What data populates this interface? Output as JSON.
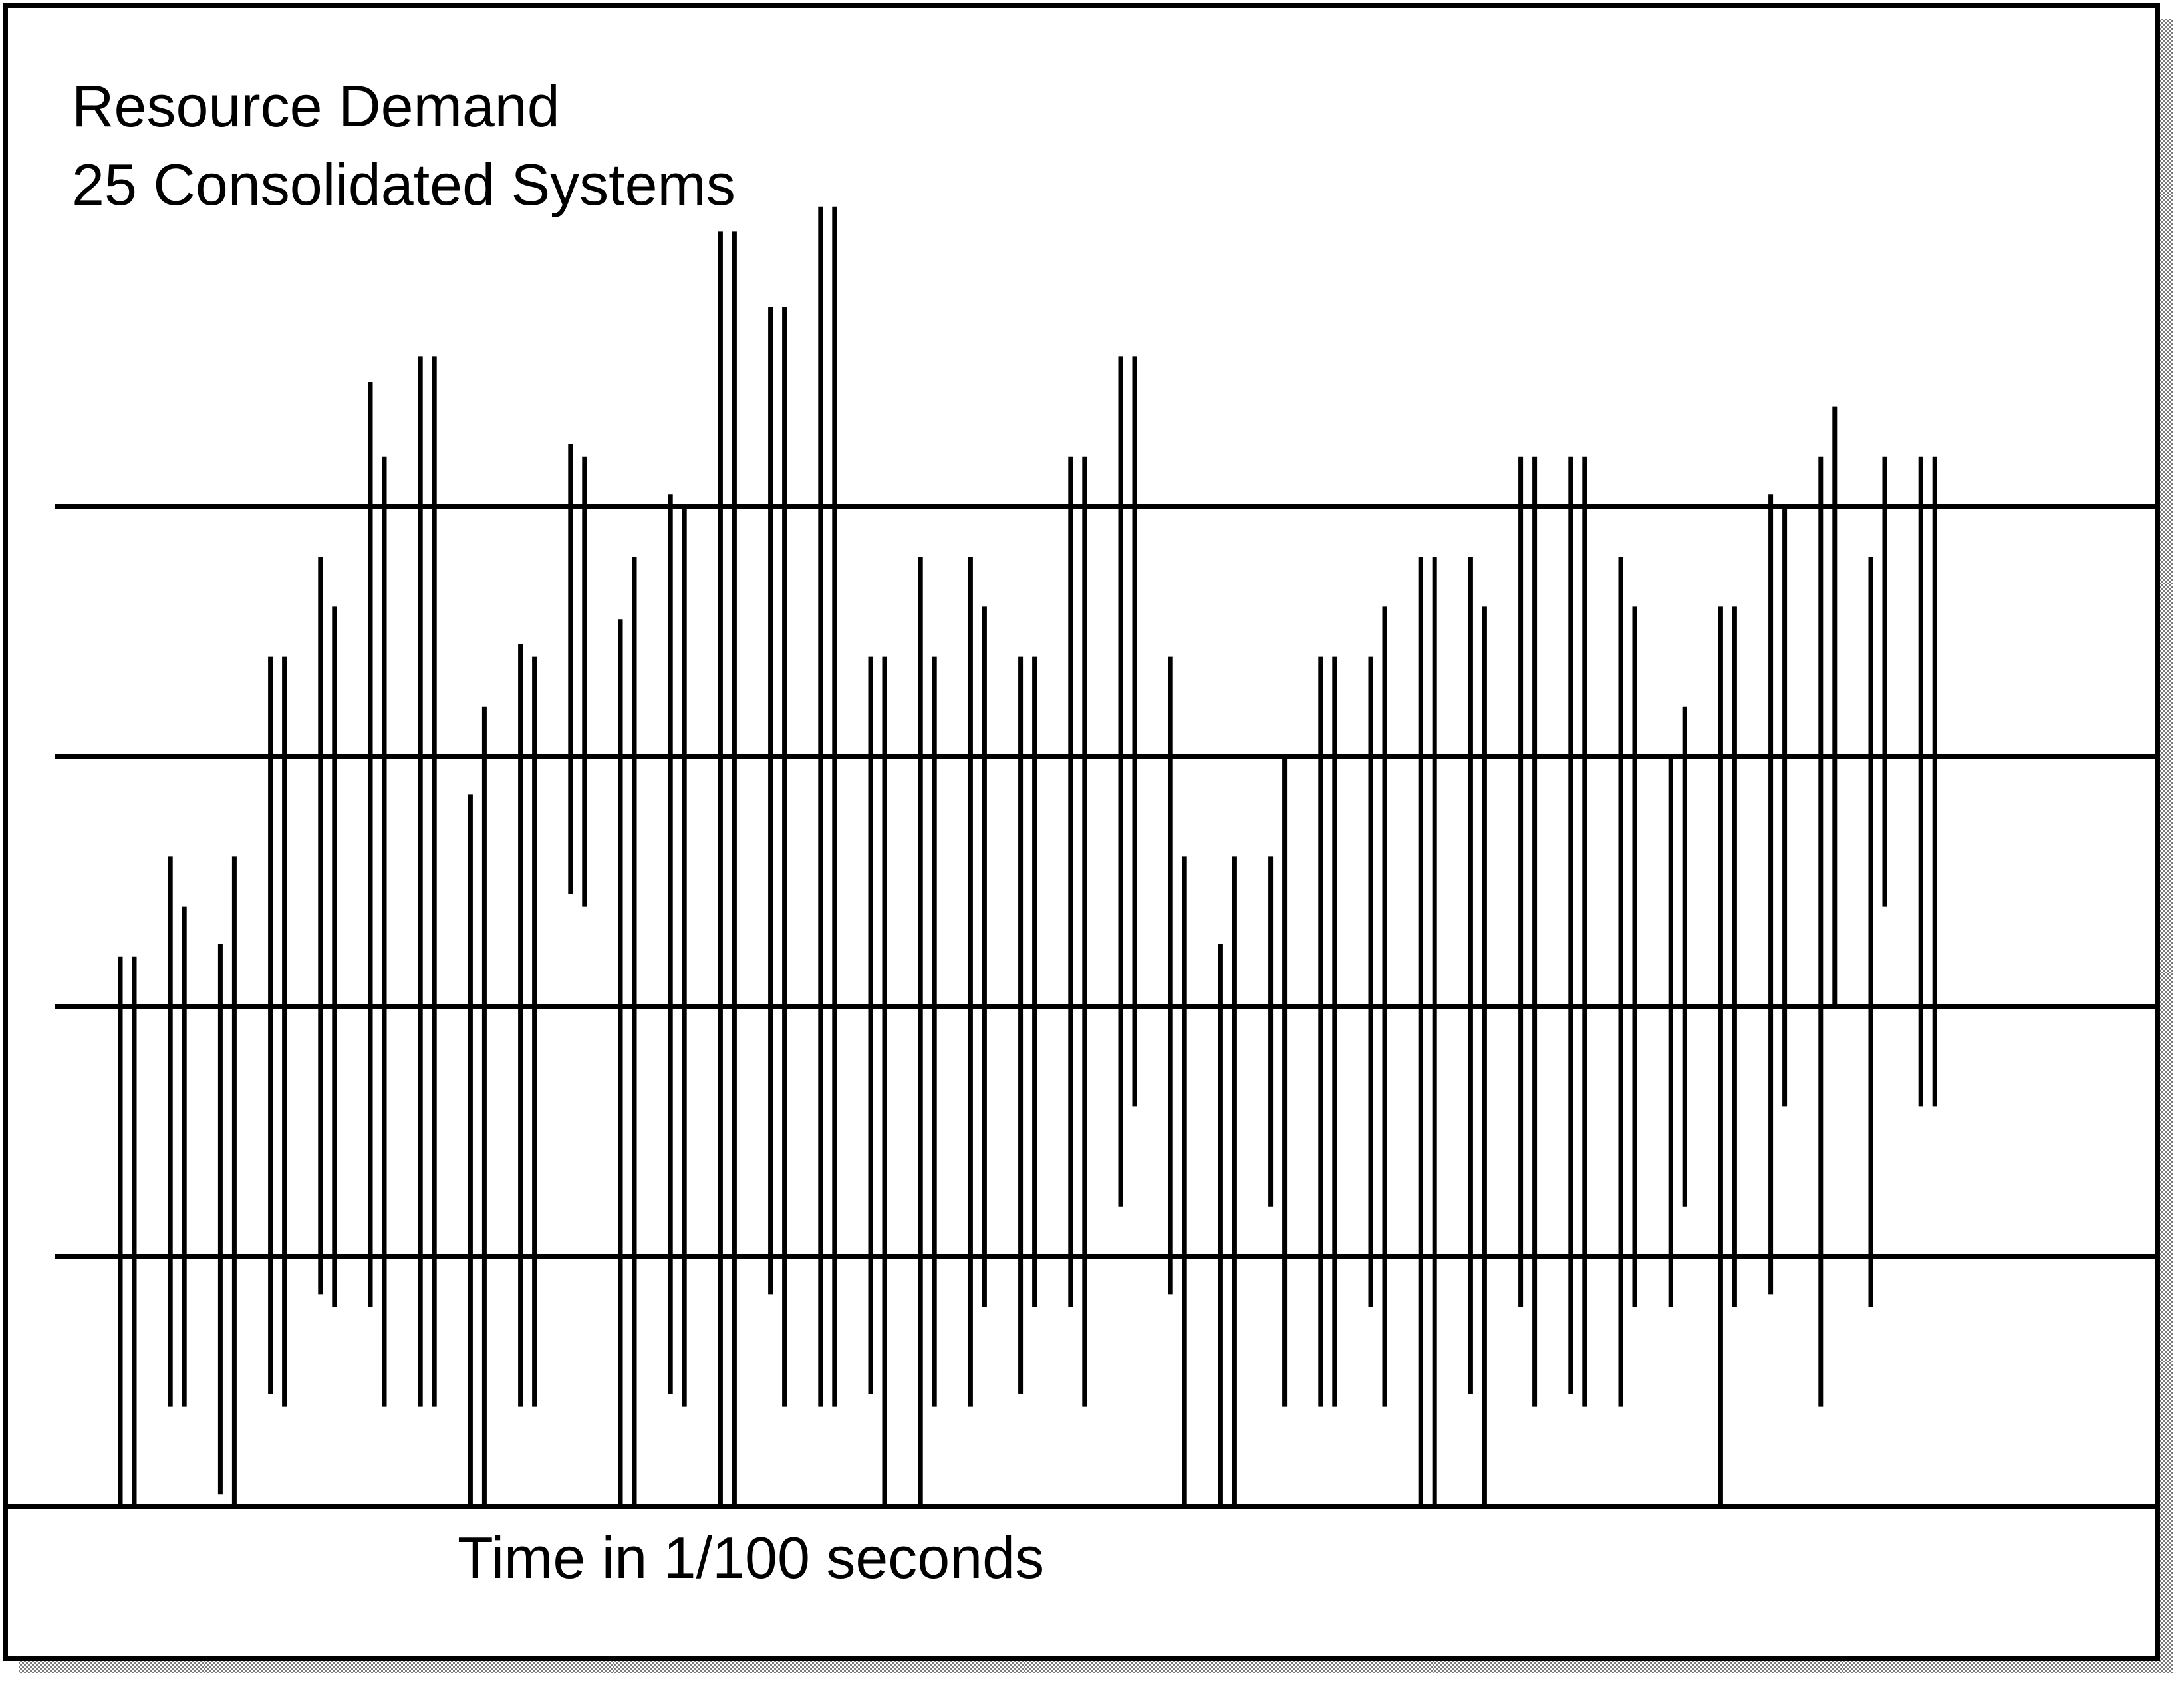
{
  "chart_data": {
    "type": "bar",
    "title": "Resource Demand",
    "subtitle": "25 Consolidated Systems",
    "xlabel": "Time in 1/100 seconds",
    "ylabel": "",
    "ylim": [
      0,
      4
    ],
    "grid": true,
    "legend": "none",
    "x": [
      1,
      2,
      3,
      4,
      5,
      6,
      7,
      8,
      9,
      10,
      11,
      12,
      13,
      14,
      15,
      16,
      17,
      18,
      19,
      20,
      21,
      22,
      23,
      24,
      25,
      26,
      27,
      28,
      29,
      30,
      31,
      32,
      33,
      34,
      35,
      36,
      37
    ],
    "series": [
      {
        "low": [
          0.0,
          0.4,
          0.05,
          0.45,
          0.85,
          0.8,
          0.4,
          0.0,
          0.4,
          2.45,
          0.0,
          0.45,
          0.0,
          0.85,
          0.4,
          0.45,
          0.0,
          0.4,
          0.45,
          0.8,
          1.2,
          0.85,
          0.0,
          1.2,
          0.4,
          0.8,
          0.0,
          0.45,
          0.8,
          0.45,
          0.4,
          0.8,
          0.0,
          0.85,
          0.4,
          0.8,
          1.6
        ],
        "high": [
          2.2,
          2.6,
          2.25,
          3.4,
          3.8,
          4.5,
          4.6,
          2.85,
          3.45,
          4.25,
          3.55,
          4.05,
          5.1,
          4.8,
          5.2,
          3.4,
          3.8,
          3.8,
          3.4,
          4.2,
          4.6,
          3.4,
          2.25,
          2.6,
          3.4,
          3.4,
          3.8,
          3.8,
          4.2,
          4.2,
          3.8,
          3.0,
          3.6,
          4.05,
          4.2,
          3.8,
          4.2
        ]
      },
      {
        "low": [
          0.0,
          0.4,
          0.0,
          0.4,
          0.8,
          0.4,
          0.4,
          0.0,
          0.4,
          2.4,
          0.0,
          0.4,
          0.0,
          0.4,
          0.4,
          0.0,
          0.4,
          0.8,
          0.8,
          0.4,
          1.6,
          0.0,
          0.0,
          0.4,
          0.4,
          0.4,
          0.0,
          0.0,
          0.4,
          0.4,
          0.8,
          1.2,
          0.8,
          1.6,
          2.0,
          2.4,
          1.6
        ],
        "high": [
          2.2,
          2.4,
          2.6,
          3.4,
          3.6,
          4.2,
          4.6,
          3.2,
          3.4,
          4.2,
          3.8,
          4.0,
          5.1,
          4.8,
          5.2,
          3.4,
          3.4,
          3.6,
          3.4,
          4.2,
          4.6,
          2.6,
          2.6,
          3.0,
          3.4,
          3.6,
          3.8,
          3.6,
          4.2,
          4.2,
          3.6,
          3.2,
          3.6,
          4.0,
          4.4,
          4.2,
          4.2
        ]
      }
    ]
  }
}
